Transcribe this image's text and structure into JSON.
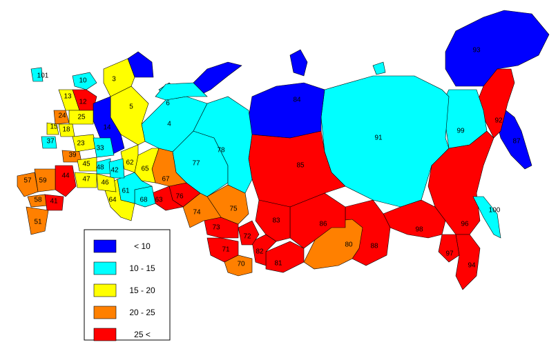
{
  "map": {
    "regions": [
      {
        "label": "93",
        "color": "#0000ff"
      },
      {
        "label": "87",
        "color": "#0000ff"
      },
      {
        "label": "92",
        "color": "#ff0000"
      },
      {
        "label": "99",
        "color": "#00ffff"
      },
      {
        "label": "91",
        "color": "#00ffff"
      },
      {
        "label": "96",
        "color": "#ff0000"
      },
      {
        "label": "98",
        "color": "#ff0000"
      },
      {
        "label": "94",
        "color": "#ff0000"
      },
      {
        "label": "97",
        "color": "#ff0000"
      },
      {
        "label": "100",
        "color": "#00ffff"
      },
      {
        "label": "88",
        "color": "#ff0000"
      },
      {
        "label": "80",
        "color": "#ff8000"
      },
      {
        "label": "86",
        "color": "#ff0000"
      },
      {
        "label": "85",
        "color": "#ff0000"
      },
      {
        "label": "84",
        "color": "#0000ff"
      },
      {
        "label": "83",
        "color": "#ff0000"
      },
      {
        "label": "81",
        "color": "#ff0000"
      },
      {
        "label": "82",
        "color": "#ff0000"
      },
      {
        "label": "72",
        "color": "#ff0000"
      },
      {
        "label": "73",
        "color": "#ff0000"
      },
      {
        "label": "71",
        "color": "#ff0000"
      },
      {
        "label": "70",
        "color": "#ff8000"
      },
      {
        "label": "75",
        "color": "#ff8000"
      },
      {
        "label": "74",
        "color": "#ff8000"
      },
      {
        "label": "76",
        "color": "#ff0000"
      },
      {
        "label": "63",
        "color": "#ff0000"
      },
      {
        "label": "77",
        "color": "#00ffff"
      },
      {
        "label": "78",
        "color": "#00ffff"
      },
      {
        "label": "4",
        "color": "#00ffff"
      },
      {
        "label": "6",
        "color": "#00ffff"
      },
      {
        "label": "67",
        "color": "#ff8000"
      },
      {
        "label": "65",
        "color": "#ffff00"
      },
      {
        "label": "68",
        "color": "#00ffff"
      },
      {
        "label": "61",
        "color": "#00ffff"
      },
      {
        "label": "64",
        "color": "#ffff00"
      },
      {
        "label": "62",
        "color": "#ffff00"
      },
      {
        "label": "5",
        "color": "#ffff00"
      },
      {
        "label": "3",
        "color": "#ffff00"
      },
      {
        "label": "10",
        "color": "#00ffff"
      },
      {
        "label": "12",
        "color": "#ff0000"
      },
      {
        "label": "13",
        "color": "#ffff00"
      },
      {
        "label": "14",
        "color": "#0000ff"
      },
      {
        "label": "24",
        "color": "#ff8000"
      },
      {
        "label": "25",
        "color": "#ffff00"
      },
      {
        "label": "15",
        "color": "#ffff00"
      },
      {
        "label": "18",
        "color": "#ffff00"
      },
      {
        "label": "37",
        "color": "#00ffff"
      },
      {
        "label": "23",
        "color": "#ffff00"
      },
      {
        "label": "33",
        "color": "#00ffff"
      },
      {
        "label": "39",
        "color": "#ff8000"
      },
      {
        "label": "45",
        "color": "#ffff00"
      },
      {
        "label": "48",
        "color": "#00ffff"
      },
      {
        "label": "42",
        "color": "#00ffff"
      },
      {
        "label": "47",
        "color": "#ffff00"
      },
      {
        "label": "46",
        "color": "#ffff00"
      },
      {
        "label": "44",
        "color": "#ff0000"
      },
      {
        "label": "59",
        "color": "#ff8000"
      },
      {
        "label": "57",
        "color": "#ff8000"
      },
      {
        "label": "58",
        "color": "#ff8000"
      },
      {
        "label": "41",
        "color": "#ff0000"
      },
      {
        "label": "51",
        "color": "#ff8000"
      },
      {
        "label": "101",
        "color": "#00ffff"
      }
    ],
    "legend": [
      {
        "label": "< 10",
        "color": "#0000ff"
      },
      {
        "label": "10 - 15",
        "color": "#00ffff"
      },
      {
        "label": "15 - 20",
        "color": "#ffff00"
      },
      {
        "label": "20 - 25",
        "color": "#ff8000"
      },
      {
        "label": "25 <",
        "color": "#ff0000"
      }
    ]
  }
}
